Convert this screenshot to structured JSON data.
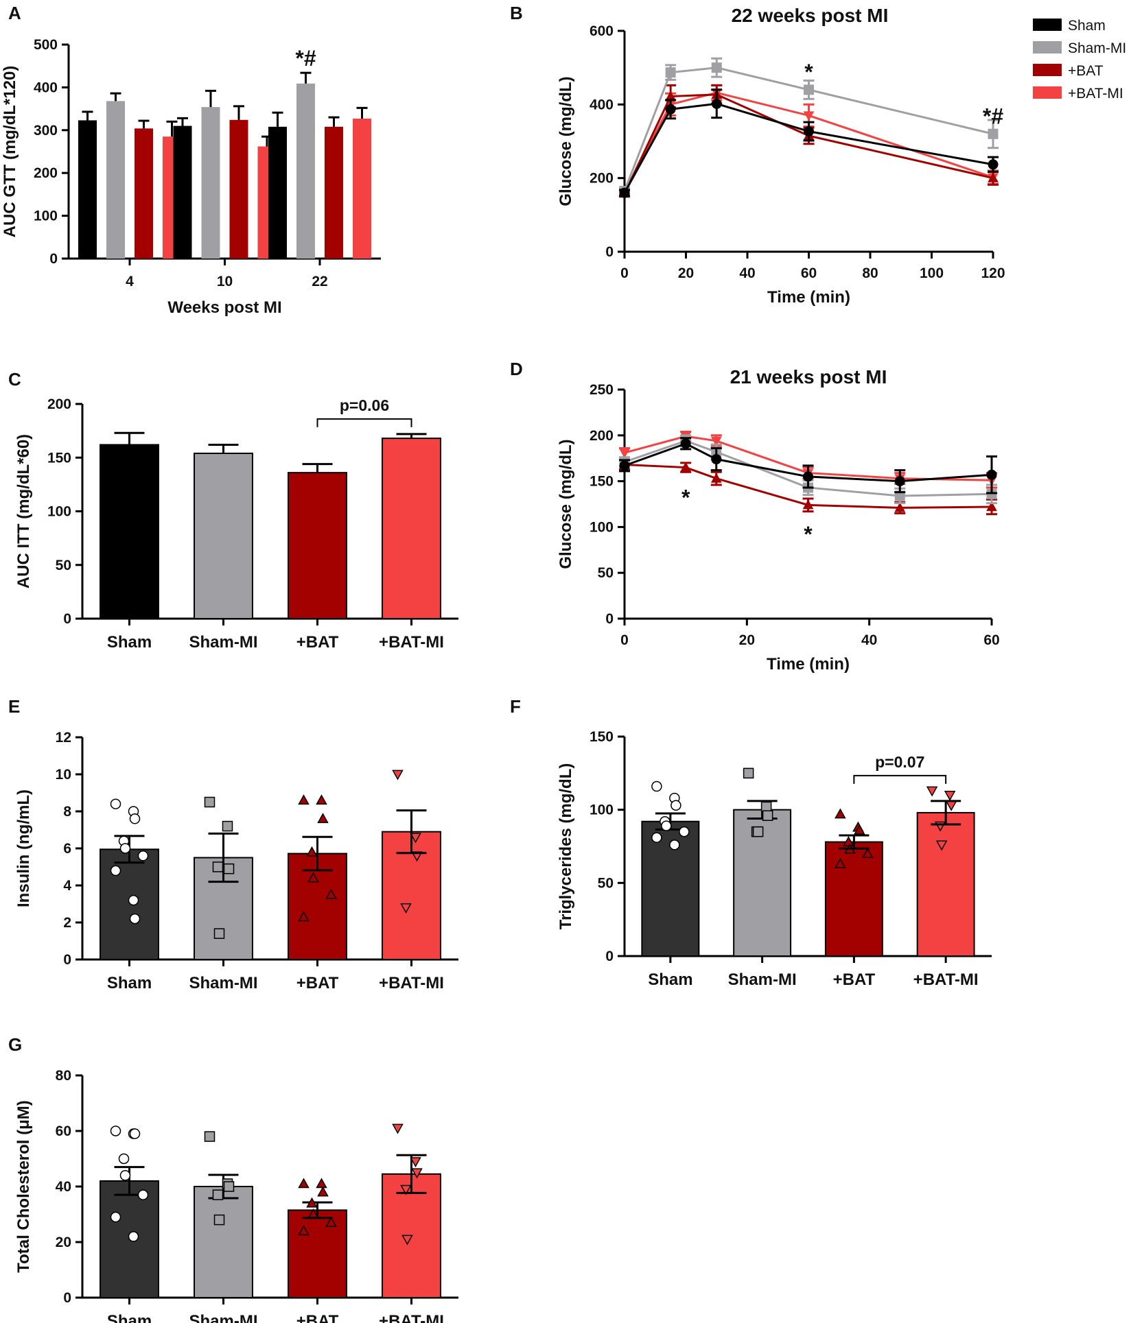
{
  "colors": {
    "Sham": "#000000",
    "Sham-MI": "#a0a0a4",
    "+BAT": "#a30000",
    "+BAT-MI": "#f44242",
    "Sham_dark": "#323232",
    "axis": "#000000"
  },
  "chart_data": [
    {
      "id": "A",
      "panel_label": "A",
      "type": "bar",
      "title": "",
      "xlabel": "Weeks post MI",
      "ylabel": "AUC GTT (mg/dL*120)",
      "ylim": [
        0,
        500
      ],
      "yticks": [
        0,
        100,
        200,
        300,
        400,
        500
      ],
      "categories": [
        "4",
        "10",
        "22"
      ],
      "series": [
        {
          "name": "Sham",
          "values": [
            323,
            310,
            308
          ],
          "errors": [
            20,
            18,
            33
          ]
        },
        {
          "name": "Sham-MI",
          "values": [
            368,
            354,
            409
          ],
          "errors": [
            18,
            38,
            25
          ]
        },
        {
          "name": "+BAT",
          "values": [
            304,
            324,
            308
          ],
          "errors": [
            18,
            32,
            22
          ]
        },
        {
          "name": "+BAT-MI",
          "values": [
            285,
            262,
            327
          ],
          "errors": [
            35,
            23,
            25
          ]
        }
      ],
      "annotations": [
        {
          "text": "*#",
          "category": "22",
          "series": "Sham-MI"
        }
      ]
    },
    {
      "id": "B",
      "panel_label": "B",
      "type": "line",
      "title": "22 weeks post MI",
      "xlabel": "Time (min)",
      "ylabel": "Glucose (mg/dL)",
      "xlim": [
        0,
        120
      ],
      "ylim": [
        0,
        600
      ],
      "xticks": [
        0,
        20,
        40,
        60,
        80,
        100,
        120
      ],
      "yticks": [
        0,
        200,
        400,
        600
      ],
      "x": [
        0,
        15,
        30,
        60,
        120
      ],
      "series": [
        {
          "name": "Sham",
          "values": [
            160,
            387,
            402,
            327,
            237
          ],
          "errors": [
            8,
            25,
            38,
            25,
            20
          ]
        },
        {
          "name": "Sham-MI",
          "values": [
            165,
            487,
            500,
            440,
            320
          ],
          "errors": [
            8,
            20,
            25,
            25,
            38
          ]
        },
        {
          "name": "+BAT",
          "values": [
            158,
            422,
            427,
            315,
            200
          ],
          "errors": [
            8,
            30,
            25,
            22,
            18
          ]
        },
        {
          "name": "+BAT-MI",
          "values": [
            162,
            400,
            432,
            370,
            202
          ],
          "errors": [
            8,
            30,
            20,
            30,
            18
          ]
        }
      ],
      "annotations": [
        {
          "text": "*",
          "x": 60,
          "y": 490
        },
        {
          "text": "*#",
          "x": 120,
          "y": 370
        }
      ],
      "legend": {
        "placement": "top-right",
        "entries": [
          "Sham",
          "Sham-MI",
          "+BAT",
          "+BAT-MI"
        ]
      }
    },
    {
      "id": "C",
      "panel_label": "C",
      "type": "bar",
      "title": "",
      "xlabel": "",
      "ylabel": "AUC ITT (mg/dL*60)",
      "ylim": [
        0,
        200
      ],
      "yticks": [
        0,
        50,
        100,
        150,
        200
      ],
      "categories": [
        "Sham",
        "Sham-MI",
        "+BAT",
        "+BAT-MI"
      ],
      "values": [
        162,
        154,
        136,
        168
      ],
      "errors": [
        11,
        8,
        8,
        4
      ],
      "bracket": {
        "from": 2,
        "to": 3,
        "text": "p=0.06"
      }
    },
    {
      "id": "D",
      "panel_label": "D",
      "type": "line",
      "title": "21 weeks post MI",
      "xlabel": "Time (min)",
      "ylabel": "Glucose (mg/dL)",
      "xlim": [
        0,
        60
      ],
      "ylim": [
        0,
        250
      ],
      "xticks": [
        0,
        20,
        40,
        60
      ],
      "yticks": [
        0,
        50,
        100,
        150,
        200,
        250
      ],
      "x": [
        0,
        10,
        15,
        30,
        45,
        60
      ],
      "series": [
        {
          "name": "Sham",
          "values": [
            167,
            191,
            174,
            155,
            150,
            157
          ],
          "errors": [
            6,
            6,
            12,
            12,
            12,
            20
          ]
        },
        {
          "name": "Sham-MI",
          "values": [
            171,
            194,
            182,
            143,
            134,
            136
          ],
          "errors": [
            5,
            6,
            8,
            8,
            8,
            10
          ]
        },
        {
          "name": "+BAT",
          "values": [
            168,
            165,
            153,
            124,
            121,
            122
          ],
          "errors": [
            5,
            5,
            7,
            7,
            6,
            8
          ]
        },
        {
          "name": "+BAT-MI",
          "values": [
            181,
            199,
            194,
            159,
            153,
            151
          ],
          "errors": [
            5,
            5,
            6,
            6,
            6,
            8
          ]
        }
      ],
      "annotations": [
        {
          "text": "*",
          "x": 10,
          "y": 133
        },
        {
          "text": "*",
          "x": 30,
          "y": 93
        }
      ]
    },
    {
      "id": "E",
      "panel_label": "E",
      "type": "bar",
      "title": "",
      "xlabel": "",
      "ylabel": "Insulin (ng/mL)",
      "ylim": [
        0,
        12
      ],
      "yticks": [
        0,
        2,
        4,
        6,
        8,
        10,
        12
      ],
      "categories": [
        "Sham",
        "Sham-MI",
        "+BAT",
        "+BAT-MI"
      ],
      "values": [
        5.95,
        5.5,
        5.72,
        6.9
      ],
      "errors": [
        0.72,
        1.3,
        0.9,
        1.15
      ],
      "points": [
        [
          8.4,
          8.0,
          7.6,
          6.4,
          6.0,
          5.6,
          4.8,
          3.2,
          2.2
        ],
        [
          8.5,
          7.2,
          4.9,
          5.0,
          1.4
        ],
        [
          8.6,
          8.6,
          7.6,
          5.8,
          4.4,
          3.5,
          2.3
        ],
        [
          10.0,
          6.6,
          5.6,
          2.8
        ]
      ]
    },
    {
      "id": "F",
      "panel_label": "F",
      "type": "bar",
      "title": "",
      "xlabel": "",
      "ylabel": "Triglycerides (mg/dL)",
      "ylim": [
        0,
        150
      ],
      "yticks": [
        0,
        50,
        100,
        150
      ],
      "categories": [
        "Sham",
        "Sham-MI",
        "+BAT",
        "+BAT-MI"
      ],
      "values": [
        92,
        100,
        78,
        98
      ],
      "errors": [
        5.5,
        6,
        4.5,
        8
      ],
      "points": [
        [
          116,
          108,
          103,
          92,
          89,
          85,
          81,
          76
        ],
        [
          125,
          102,
          96,
          85,
          85
        ],
        [
          97,
          88,
          86,
          78,
          73,
          70,
          63
        ],
        [
          113,
          110,
          103,
          89,
          76
        ]
      ],
      "bracket": {
        "from": 2,
        "to": 3,
        "text": "p=0.07"
      }
    },
    {
      "id": "G",
      "panel_label": "G",
      "type": "bar",
      "title": "",
      "xlabel": "",
      "ylabel": "Total Cholesterol (μM)",
      "ylim": [
        0,
        80
      ],
      "yticks": [
        0,
        20,
        40,
        60,
        80
      ],
      "categories": [
        "Sham",
        "Sham-MI",
        "+BAT",
        "+BAT-MI"
      ],
      "values": [
        42,
        40,
        31.5,
        44.5
      ],
      "errors": [
        5,
        4.2,
        2.8,
        6.8
      ],
      "points": [
        [
          60,
          59,
          59,
          50,
          44,
          37,
          29,
          22
        ],
        [
          58,
          41,
          40,
          37,
          28
        ],
        [
          41,
          41,
          38,
          34,
          30,
          27,
          24
        ],
        [
          61,
          49,
          45,
          39,
          21
        ]
      ]
    }
  ]
}
